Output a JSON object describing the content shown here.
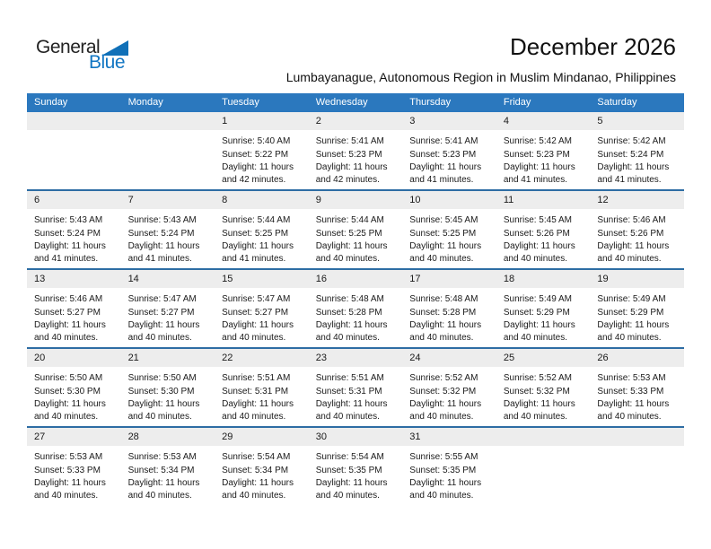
{
  "logo": {
    "primary": "General",
    "secondary": "Blue"
  },
  "header": {
    "month_title": "December 2026",
    "location": "Lumbayanague, Autonomous Region in Muslim Mindanao, Philippines"
  },
  "calendar": {
    "weekday_headers": [
      "Sunday",
      "Monday",
      "Tuesday",
      "Wednesday",
      "Thursday",
      "Friday",
      "Saturday"
    ],
    "field_labels": {
      "sunrise": "Sunrise:",
      "sunset": "Sunset:",
      "daylight": "Daylight:"
    },
    "weeks": [
      [
        null,
        null,
        {
          "day": "1",
          "sunrise": "5:40 AM",
          "sunset": "5:22 PM",
          "daylight": "11 hours and 42 minutes."
        },
        {
          "day": "2",
          "sunrise": "5:41 AM",
          "sunset": "5:23 PM",
          "daylight": "11 hours and 42 minutes."
        },
        {
          "day": "3",
          "sunrise": "5:41 AM",
          "sunset": "5:23 PM",
          "daylight": "11 hours and 41 minutes."
        },
        {
          "day": "4",
          "sunrise": "5:42 AM",
          "sunset": "5:23 PM",
          "daylight": "11 hours and 41 minutes."
        },
        {
          "day": "5",
          "sunrise": "5:42 AM",
          "sunset": "5:24 PM",
          "daylight": "11 hours and 41 minutes."
        }
      ],
      [
        {
          "day": "6",
          "sunrise": "5:43 AM",
          "sunset": "5:24 PM",
          "daylight": "11 hours and 41 minutes."
        },
        {
          "day": "7",
          "sunrise": "5:43 AM",
          "sunset": "5:24 PM",
          "daylight": "11 hours and 41 minutes."
        },
        {
          "day": "8",
          "sunrise": "5:44 AM",
          "sunset": "5:25 PM",
          "daylight": "11 hours and 41 minutes."
        },
        {
          "day": "9",
          "sunrise": "5:44 AM",
          "sunset": "5:25 PM",
          "daylight": "11 hours and 40 minutes."
        },
        {
          "day": "10",
          "sunrise": "5:45 AM",
          "sunset": "5:25 PM",
          "daylight": "11 hours and 40 minutes."
        },
        {
          "day": "11",
          "sunrise": "5:45 AM",
          "sunset": "5:26 PM",
          "daylight": "11 hours and 40 minutes."
        },
        {
          "day": "12",
          "sunrise": "5:46 AM",
          "sunset": "5:26 PM",
          "daylight": "11 hours and 40 minutes."
        }
      ],
      [
        {
          "day": "13",
          "sunrise": "5:46 AM",
          "sunset": "5:27 PM",
          "daylight": "11 hours and 40 minutes."
        },
        {
          "day": "14",
          "sunrise": "5:47 AM",
          "sunset": "5:27 PM",
          "daylight": "11 hours and 40 minutes."
        },
        {
          "day": "15",
          "sunrise": "5:47 AM",
          "sunset": "5:27 PM",
          "daylight": "11 hours and 40 minutes."
        },
        {
          "day": "16",
          "sunrise": "5:48 AM",
          "sunset": "5:28 PM",
          "daylight": "11 hours and 40 minutes."
        },
        {
          "day": "17",
          "sunrise": "5:48 AM",
          "sunset": "5:28 PM",
          "daylight": "11 hours and 40 minutes."
        },
        {
          "day": "18",
          "sunrise": "5:49 AM",
          "sunset": "5:29 PM",
          "daylight": "11 hours and 40 minutes."
        },
        {
          "day": "19",
          "sunrise": "5:49 AM",
          "sunset": "5:29 PM",
          "daylight": "11 hours and 40 minutes."
        }
      ],
      [
        {
          "day": "20",
          "sunrise": "5:50 AM",
          "sunset": "5:30 PM",
          "daylight": "11 hours and 40 minutes."
        },
        {
          "day": "21",
          "sunrise": "5:50 AM",
          "sunset": "5:30 PM",
          "daylight": "11 hours and 40 minutes."
        },
        {
          "day": "22",
          "sunrise": "5:51 AM",
          "sunset": "5:31 PM",
          "daylight": "11 hours and 40 minutes."
        },
        {
          "day": "23",
          "sunrise": "5:51 AM",
          "sunset": "5:31 PM",
          "daylight": "11 hours and 40 minutes."
        },
        {
          "day": "24",
          "sunrise": "5:52 AM",
          "sunset": "5:32 PM",
          "daylight": "11 hours and 40 minutes."
        },
        {
          "day": "25",
          "sunrise": "5:52 AM",
          "sunset": "5:32 PM",
          "daylight": "11 hours and 40 minutes."
        },
        {
          "day": "26",
          "sunrise": "5:53 AM",
          "sunset": "5:33 PM",
          "daylight": "11 hours and 40 minutes."
        }
      ],
      [
        {
          "day": "27",
          "sunrise": "5:53 AM",
          "sunset": "5:33 PM",
          "daylight": "11 hours and 40 minutes."
        },
        {
          "day": "28",
          "sunrise": "5:53 AM",
          "sunset": "5:34 PM",
          "daylight": "11 hours and 40 minutes."
        },
        {
          "day": "29",
          "sunrise": "5:54 AM",
          "sunset": "5:34 PM",
          "daylight": "11 hours and 40 minutes."
        },
        {
          "day": "30",
          "sunrise": "5:54 AM",
          "sunset": "5:35 PM",
          "daylight": "11 hours and 40 minutes."
        },
        {
          "day": "31",
          "sunrise": "5:55 AM",
          "sunset": "5:35 PM",
          "daylight": "11 hours and 40 minutes."
        },
        null,
        null
      ]
    ]
  },
  "colors": {
    "header_bar": "#2B78BE",
    "week_divider": "#2E6DA4",
    "day_number_band": "#EDEDED",
    "logo_blue": "#1276C3",
    "logo_dark": "#232323",
    "text": "#1A1A1A"
  }
}
